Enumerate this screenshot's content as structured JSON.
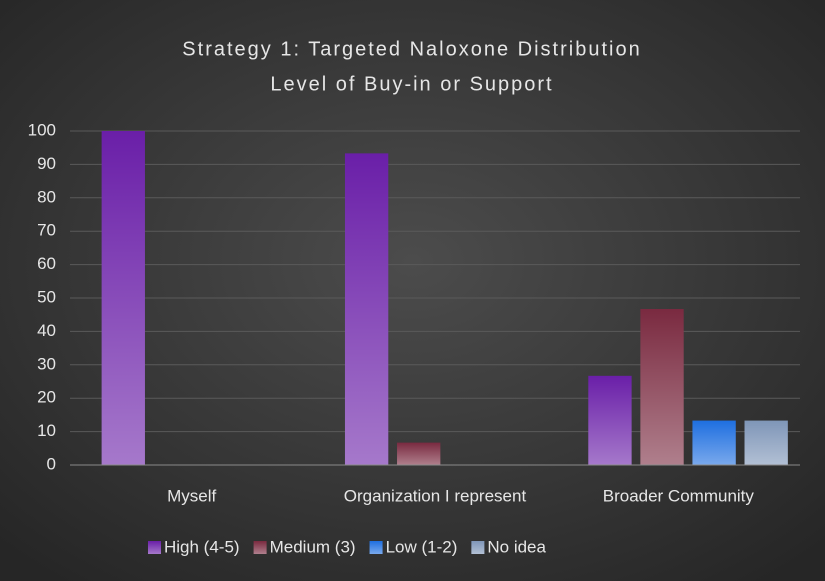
{
  "chart_data": {
    "type": "bar",
    "title": "Strategy 1: Targeted Naloxone Distribution",
    "subtitle": "Level of Buy-in or Support",
    "categories": [
      "Myself",
      "Organization I represent",
      "Broader Community"
    ],
    "series": [
      {
        "name": "High (4-5)",
        "color": "#6a1fa8",
        "values": [
          100,
          93.3,
          26.7
        ]
      },
      {
        "name": "Medium (3)",
        "color": "#7a2a40",
        "values": [
          0,
          6.7,
          46.7
        ]
      },
      {
        "name": "Low (1-2)",
        "color": "#1f6fe0",
        "values": [
          0,
          0,
          13.3
        ]
      },
      {
        "name": "No idea",
        "color": "#7f96b8",
        "values": [
          0,
          0,
          13.3
        ]
      }
    ],
    "ylim": [
      0,
      100
    ],
    "yticks": [
      0,
      10,
      20,
      30,
      40,
      50,
      60,
      70,
      80,
      90,
      100
    ],
    "grid": true,
    "legend": "bottom"
  }
}
